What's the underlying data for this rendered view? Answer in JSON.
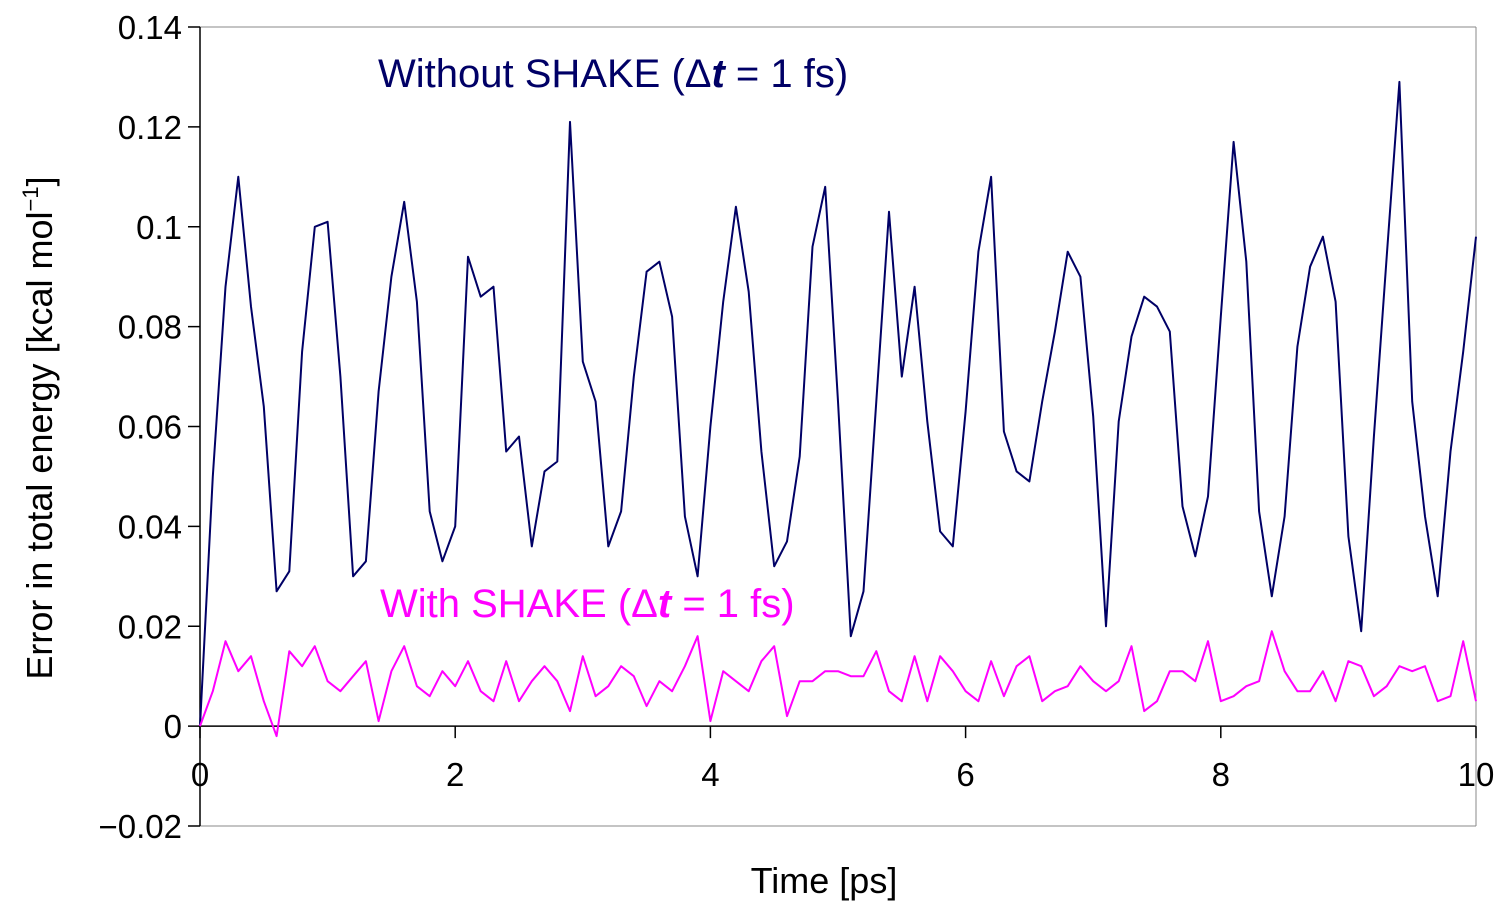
{
  "chart_data": {
    "type": "line",
    "title": "",
    "xlabel": "Time [ps]",
    "ylabel": {
      "main": "Error in total energy [kcal mol",
      "sup": "−1",
      "close": "]"
    },
    "xlim": [
      0,
      10
    ],
    "ylim": [
      -0.02,
      0.14
    ],
    "xticks": [
      "0",
      "2",
      "4",
      "6",
      "8",
      "10"
    ],
    "yticks": [
      "−0.02",
      "0",
      "0.02",
      "0.04",
      "0.06",
      "0.08",
      "0.1",
      "0.12",
      "0.14"
    ],
    "grid": false,
    "legend": "none",
    "x_step": 0.1,
    "annotations": [
      {
        "series": 0,
        "pre": "Without SHAKE (",
        "delta": "Δ",
        "var": "t",
        "post": " = 1 fs)",
        "color": "#000066"
      },
      {
        "series": 1,
        "pre": "With SHAKE (",
        "delta": "Δ",
        "var": "t",
        "post": " = 1 fs)",
        "color": "#ff00ff"
      }
    ],
    "series": [
      {
        "color": "#000066",
        "values": [
          0,
          0.05,
          0.088,
          0.11,
          0.084,
          0.064,
          0.027,
          0.031,
          0.075,
          0.1,
          0.101,
          0.07,
          0.03,
          0.033,
          0.067,
          0.09,
          0.105,
          0.085,
          0.043,
          0.033,
          0.04,
          0.094,
          0.086,
          0.088,
          0.055,
          0.058,
          0.036,
          0.051,
          0.053,
          0.121,
          0.073,
          0.065,
          0.036,
          0.043,
          0.07,
          0.091,
          0.093,
          0.082,
          0.042,
          0.03,
          0.06,
          0.085,
          0.104,
          0.087,
          0.055,
          0.032,
          0.037,
          0.054,
          0.096,
          0.108,
          0.065,
          0.018,
          0.027,
          0.065,
          0.103,
          0.07,
          0.088,
          0.061,
          0.039,
          0.036,
          0.063,
          0.095,
          0.11,
          0.059,
          0.051,
          0.049,
          0.065,
          0.079,
          0.095,
          0.09,
          0.062,
          0.02,
          0.061,
          0.078,
          0.086,
          0.084,
          0.079,
          0.044,
          0.034,
          0.046,
          0.082,
          0.117,
          0.093,
          0.043,
          0.026,
          0.042,
          0.076,
          0.092,
          0.098,
          0.085,
          0.038,
          0.019,
          0.058,
          0.094,
          0.129,
          0.065,
          0.042,
          0.026,
          0.055,
          0.075,
          0.098
        ]
      },
      {
        "color": "#ff00ff",
        "values": [
          0,
          0.007,
          0.017,
          0.011,
          0.014,
          0.005,
          -0.002,
          0.015,
          0.012,
          0.016,
          0.009,
          0.007,
          0.01,
          0.013,
          0.001,
          0.011,
          0.016,
          0.008,
          0.006,
          0.011,
          0.008,
          0.013,
          0.007,
          0.005,
          0.013,
          0.005,
          0.009,
          0.012,
          0.009,
          0.003,
          0.014,
          0.006,
          0.008,
          0.012,
          0.01,
          0.004,
          0.009,
          0.007,
          0.012,
          0.018,
          0.001,
          0.011,
          0.009,
          0.007,
          0.013,
          0.016,
          0.002,
          0.009,
          0.009,
          0.011,
          0.011,
          0.01,
          0.01,
          0.015,
          0.007,
          0.005,
          0.014,
          0.005,
          0.014,
          0.011,
          0.007,
          0.005,
          0.013,
          0.006,
          0.012,
          0.014,
          0.005,
          0.007,
          0.008,
          0.012,
          0.009,
          0.007,
          0.009,
          0.016,
          0.003,
          0.005,
          0.011,
          0.011,
          0.009,
          0.017,
          0.005,
          0.006,
          0.008,
          0.009,
          0.019,
          0.011,
          0.007,
          0.007,
          0.011,
          0.005,
          0.013,
          0.012,
          0.006,
          0.008,
          0.012,
          0.011,
          0.012,
          0.005,
          0.006,
          0.017,
          0.005
        ]
      }
    ]
  }
}
